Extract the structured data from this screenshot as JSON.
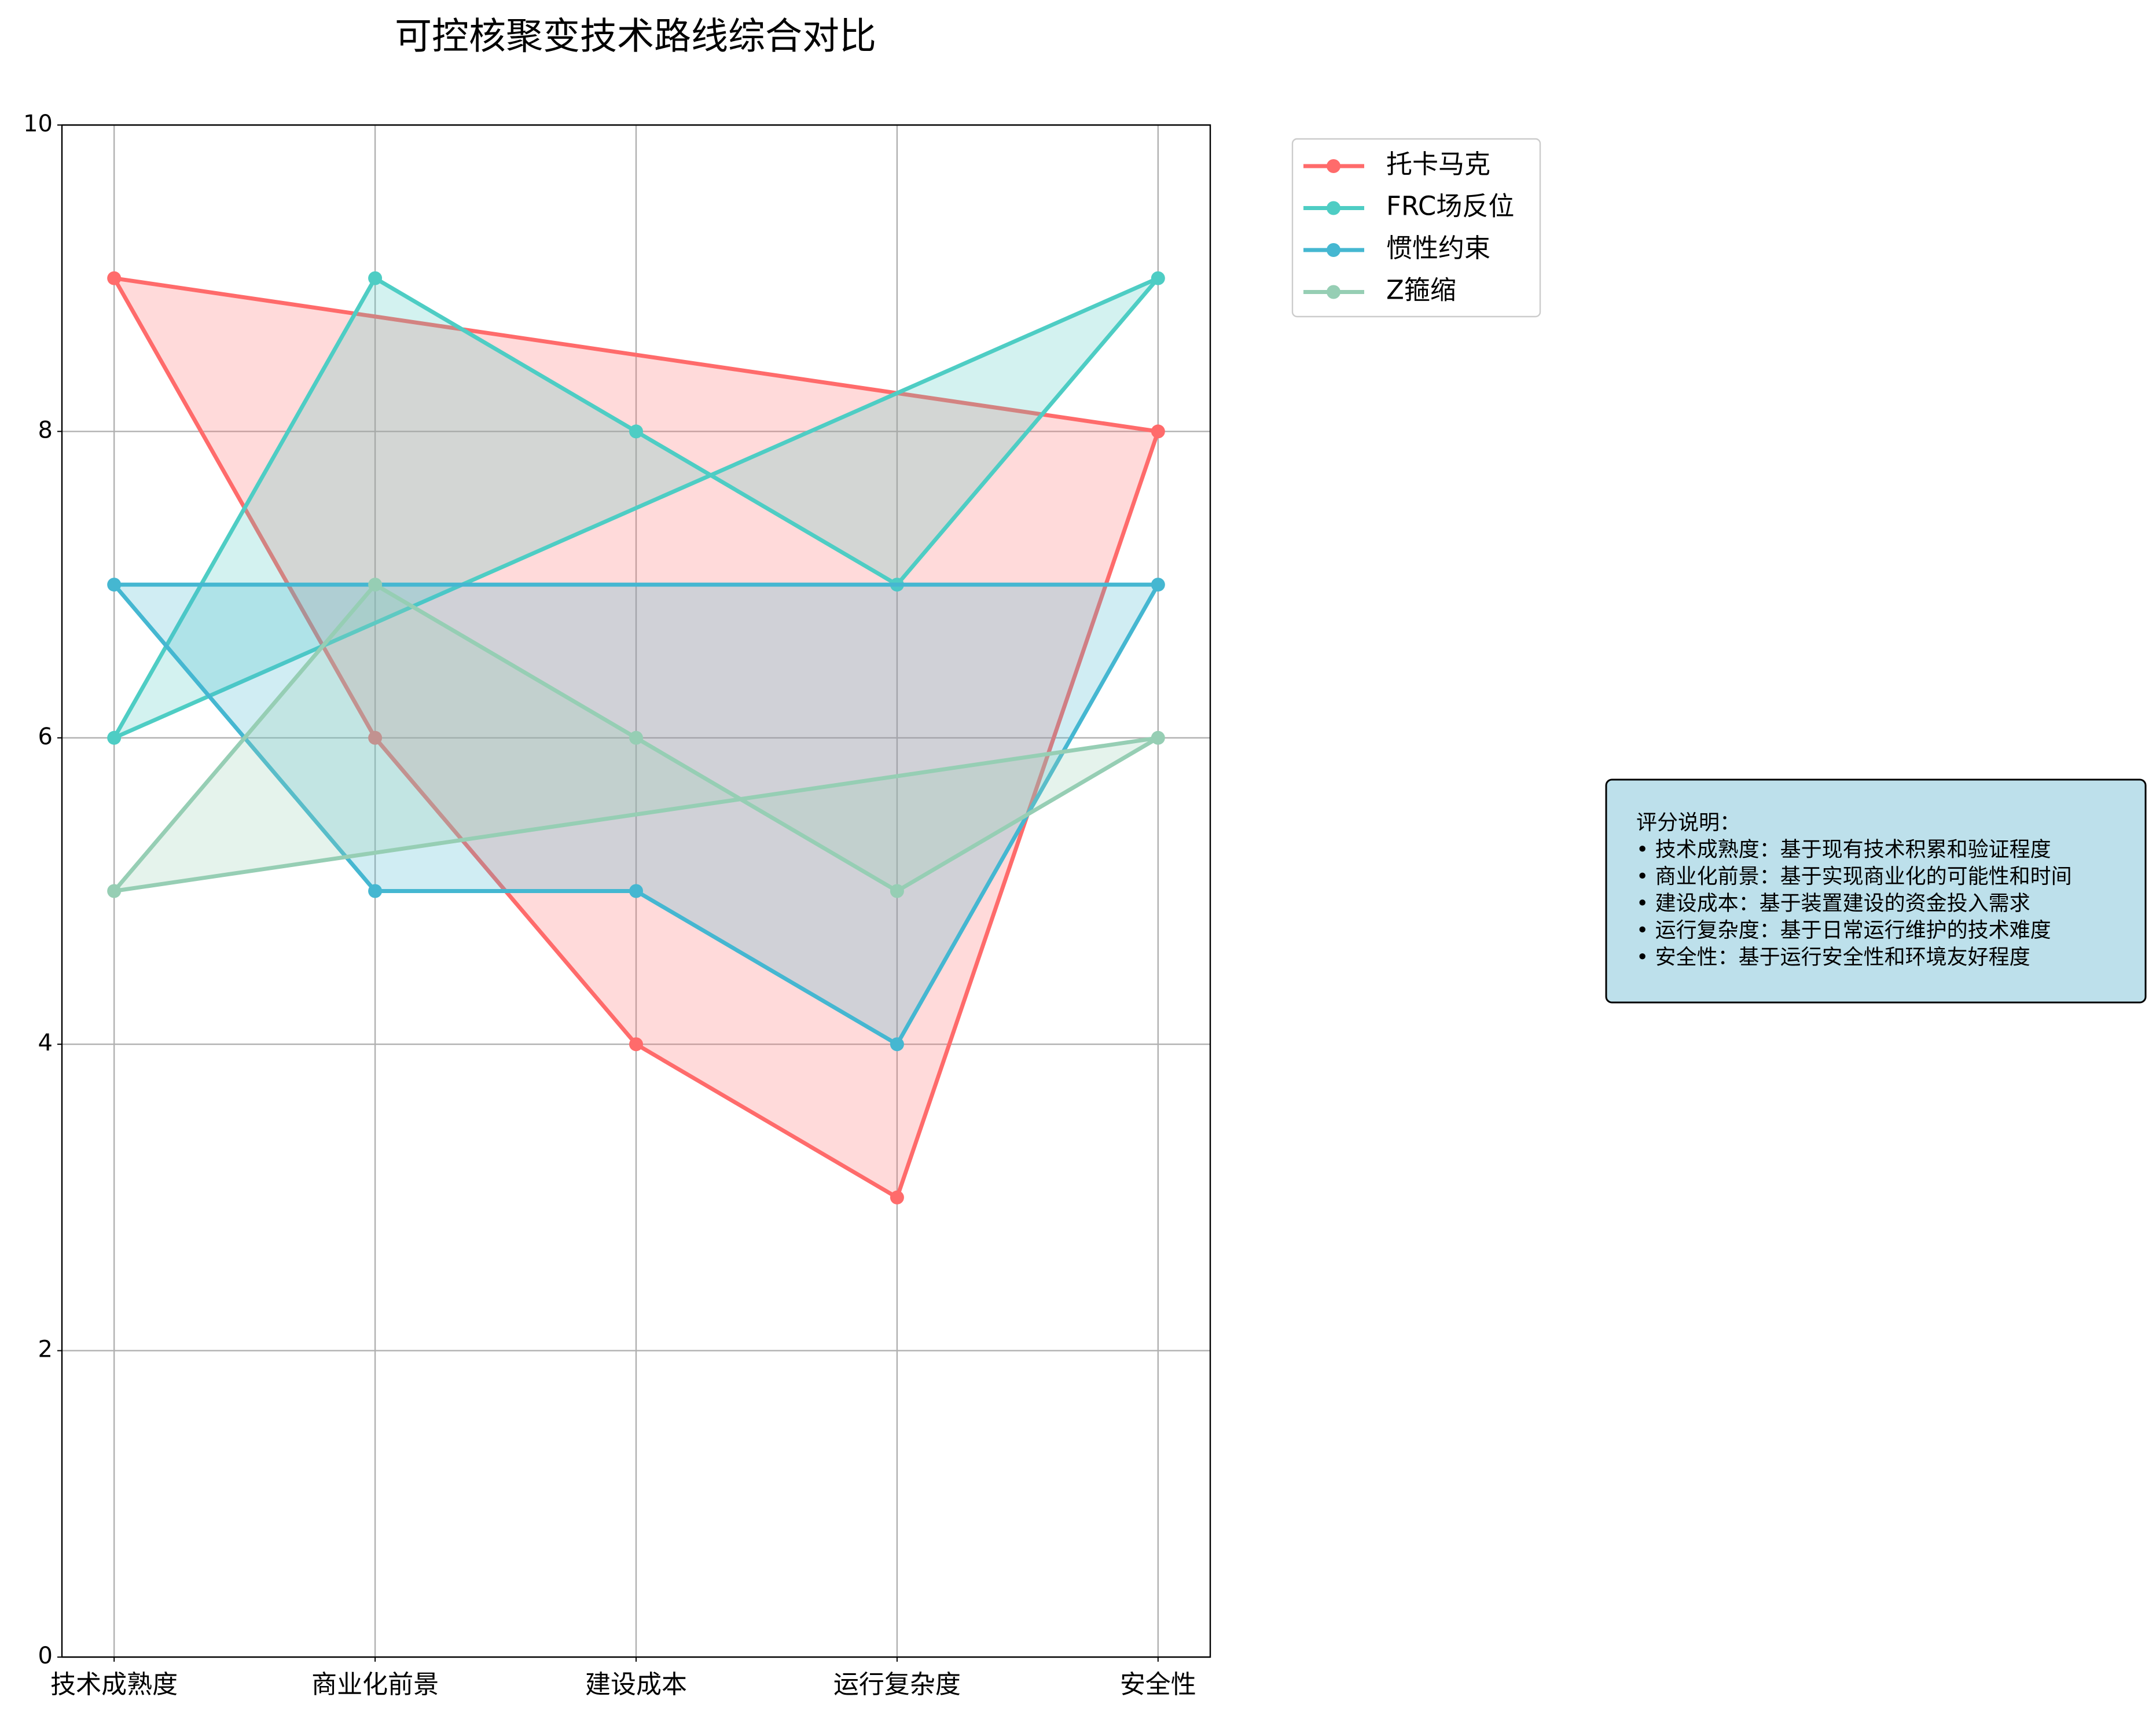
{
  "chart_data": {
    "type": "line",
    "closed": true,
    "filled": true,
    "grid": true,
    "title": "可控核聚变技术路线综合对比",
    "categories": [
      "技术成熟度",
      "商业化前景",
      "建设成本",
      "运行复杂度",
      "安全性"
    ],
    "series": [
      {
        "name": "托卡马克",
        "color": "#ff6b6b",
        "values": [
          9,
          6,
          4,
          3,
          8
        ]
      },
      {
        "name": "FRC场反位",
        "color": "#4ecdc4",
        "values": [
          6,
          9,
          8,
          7,
          9
        ]
      },
      {
        "name": "惯性约束",
        "color": "#45b7d1",
        "values": [
          7,
          5,
          5,
          4,
          7
        ]
      },
      {
        "name": "Z箍缩",
        "color": "#96ceb4",
        "values": [
          5,
          7,
          6,
          5,
          6
        ]
      }
    ],
    "ylim": [
      0,
      10
    ],
    "yticks": [
      0,
      2,
      4,
      6,
      8,
      10
    ],
    "annotation": [
      "评分说明：",
      "• 技术成熟度：基于现有技术积累和验证程度",
      "• 商业化前景：基于实现商业化的可能性和时间",
      "• 建设成本：基于装置建设的资金投入需求",
      "• 运行复杂度：基于日常运行维护的技术难度",
      "• 安全性：基于运行安全性和环境友好程度"
    ]
  }
}
